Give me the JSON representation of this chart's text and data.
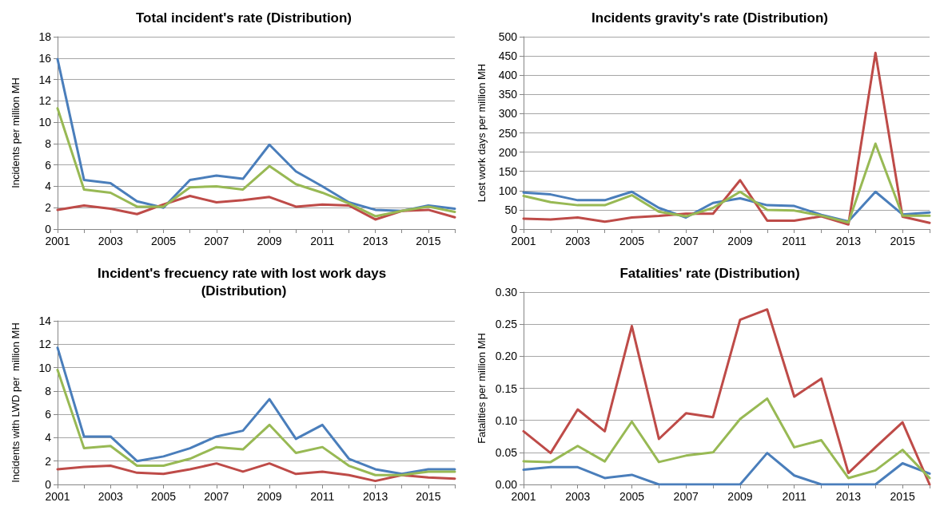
{
  "chart_data": [
    {
      "type": "line",
      "title": "Total incident's rate (Distribution)",
      "ylabel": "Incidents per million MH",
      "categories": [
        "2001",
        null,
        "2003",
        null,
        "2005",
        null,
        "2007",
        null,
        "2009",
        null,
        "2011",
        null,
        "2013",
        null,
        "2015",
        null
      ],
      "ylim": [
        0,
        18
      ],
      "yticks": [
        0,
        2,
        4,
        6,
        8,
        10,
        12,
        14,
        16,
        18
      ],
      "grid": "y",
      "marker": "none",
      "line_style": "solid",
      "series": [
        {
          "color": "#4a7ebb",
          "values": [
            15.9,
            4.6,
            4.3,
            2.6,
            2.0,
            4.6,
            5.0,
            4.7,
            7.9,
            5.4,
            4.0,
            2.5,
            1.8,
            1.7,
            2.2,
            1.9
          ]
        },
        {
          "color": "#be4b48",
          "values": [
            1.8,
            2.2,
            1.9,
            1.4,
            2.3,
            3.1,
            2.5,
            2.7,
            3.0,
            2.1,
            2.3,
            2.2,
            0.9,
            1.7,
            1.8,
            1.1
          ]
        },
        {
          "color": "#98b954",
          "values": [
            11.3,
            3.7,
            3.4,
            2.1,
            2.1,
            3.9,
            4.0,
            3.7,
            5.9,
            4.2,
            3.4,
            2.4,
            1.2,
            1.7,
            2.1,
            1.6
          ]
        }
      ]
    },
    {
      "type": "line",
      "title": "Incidents gravity's rate (Distribution)",
      "ylabel": "Lost work days per million MH",
      "categories": [
        "2001",
        null,
        "2003",
        null,
        "2005",
        null,
        "2007",
        null,
        "2009",
        null,
        "2011",
        null,
        "2013",
        null,
        "2015",
        null
      ],
      "ylim": [
        0,
        500
      ],
      "yticks": [
        0,
        50,
        100,
        150,
        200,
        250,
        300,
        350,
        400,
        450,
        500
      ],
      "grid": "y",
      "marker": "none",
      "line_style": "solid",
      "series": [
        {
          "color": "#4a7ebb",
          "values": [
            95,
            90,
            75,
            75,
            97,
            55,
            30,
            68,
            80,
            62,
            60,
            37,
            20,
            97,
            38,
            43
          ]
        },
        {
          "color": "#be4b48",
          "values": [
            27,
            25,
            30,
            19,
            30,
            34,
            40,
            40,
            127,
            22,
            22,
            33,
            12,
            458,
            32,
            16
          ]
        },
        {
          "color": "#98b954",
          "values": [
            86,
            70,
            62,
            62,
            88,
            45,
            33,
            55,
            97,
            50,
            48,
            35,
            17,
            222,
            35,
            35
          ]
        }
      ]
    },
    {
      "type": "line",
      "title": "Incident's frecuency rate with lost work days (Distribution)",
      "ylabel": "Incidents with LWD per  million MH",
      "categories": [
        "2001",
        null,
        "2003",
        null,
        "2005",
        null,
        "2007",
        null,
        "2009",
        null,
        "2011",
        null,
        "2013",
        null,
        "2015",
        null
      ],
      "ylim": [
        0,
        14
      ],
      "yticks": [
        0,
        2,
        4,
        6,
        8,
        10,
        12,
        14
      ],
      "grid": "y",
      "marker": "none",
      "line_style": "solid",
      "series": [
        {
          "color": "#4a7ebb",
          "values": [
            11.7,
            4.1,
            4.1,
            2.0,
            2.4,
            3.1,
            4.1,
            4.6,
            7.3,
            3.9,
            5.1,
            2.2,
            1.3,
            0.9,
            1.3,
            1.3
          ]
        },
        {
          "color": "#be4b48",
          "values": [
            1.3,
            1.5,
            1.6,
            1.0,
            0.9,
            1.3,
            1.8,
            1.1,
            1.8,
            0.9,
            1.1,
            0.8,
            0.3,
            0.8,
            0.6,
            0.5
          ]
        },
        {
          "color": "#98b954",
          "values": [
            9.8,
            3.1,
            3.3,
            1.6,
            1.6,
            2.2,
            3.2,
            3.0,
            5.1,
            2.7,
            3.2,
            1.6,
            0.8,
            0.8,
            1.1,
            1.1
          ]
        }
      ]
    },
    {
      "type": "line",
      "title": "Fatalities' rate (Distribution)",
      "ylabel": "Fatalities per million MH",
      "categories": [
        "2001",
        null,
        "2003",
        null,
        "2005",
        null,
        "2007",
        null,
        "2009",
        null,
        "2011",
        null,
        "2013",
        null,
        "2015",
        null
      ],
      "ylim": [
        0,
        0.3
      ],
      "yticks": [
        {
          "value": 0,
          "label": "0.00"
        },
        {
          "value": 0.05,
          "label": "0.05"
        },
        {
          "value": 0.1,
          "label": "0.10"
        },
        {
          "value": 0.15,
          "label": "0.15"
        },
        {
          "value": 0.2,
          "label": "0.20"
        },
        {
          "value": 0.25,
          "label": "0.25"
        },
        {
          "value": 0.3,
          "label": "0.30"
        }
      ],
      "grid": "y",
      "marker": "none",
      "line_style": "solid",
      "series": [
        {
          "color": "#4a7ebb",
          "values": [
            0.023,
            0.027,
            0.027,
            0.01,
            0.015,
            0,
            0,
            0,
            0,
            0.049,
            0.014,
            0,
            0,
            0,
            0.033,
            0.017
          ]
        },
        {
          "color": "#be4b48",
          "values": [
            0.083,
            0.049,
            0.117,
            0.083,
            0.247,
            0.071,
            0.111,
            0.105,
            0.257,
            0.273,
            0.137,
            0.165,
            0.018,
            0.058,
            0.097,
            0.0
          ]
        },
        {
          "color": "#98b954",
          "values": [
            0.036,
            0.035,
            0.06,
            0.036,
            0.098,
            0.035,
            0.045,
            0.05,
            0.102,
            0.134,
            0.058,
            0.069,
            0.01,
            0.022,
            0.054,
            0.01
          ]
        }
      ]
    }
  ]
}
